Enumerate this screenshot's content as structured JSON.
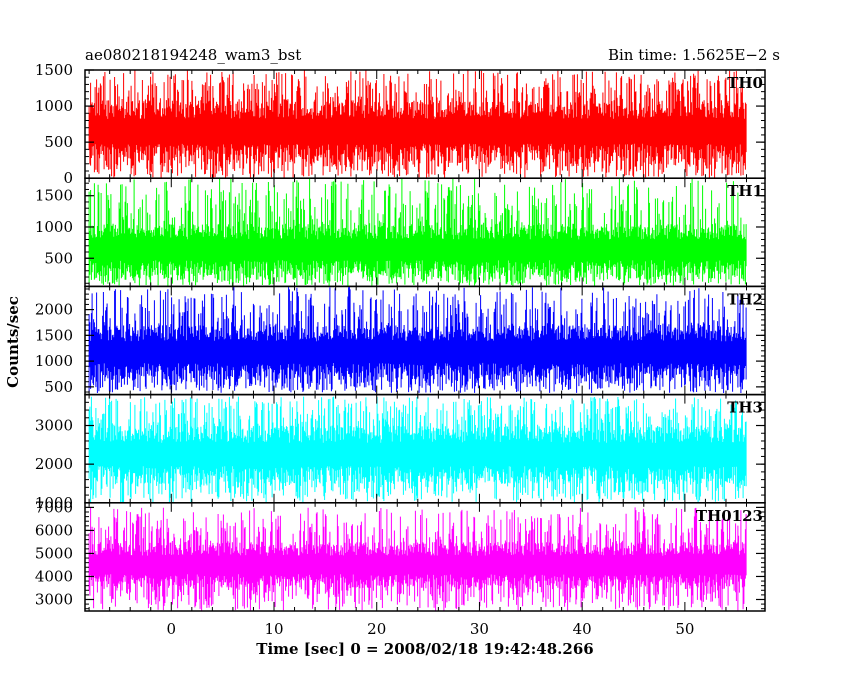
{
  "chart_data": {
    "type": "line",
    "title": "ae080218194248_wam3_bst",
    "bin_time_label": "Bin time: 1.5625E−2 s",
    "xlabel": "Time [sec] 0 = 2008/02/18 19:42:48.266",
    "ylabel": "Counts/sec",
    "xlim": [
      -8.4,
      57.8
    ],
    "x_ticks": [
      0,
      10,
      20,
      30,
      40,
      50
    ],
    "x_ticks_minor_step": 2,
    "x_data_range": [
      -8,
      56
    ],
    "grid": false,
    "panels": [
      {
        "name": "TH0",
        "color": "#ff0000",
        "ylim": [
          0,
          1500
        ],
        "y_ticks": [
          0,
          500,
          1000,
          1500
        ],
        "minor_step": 100,
        "band": [
          220,
          1080
        ],
        "spike_range": [
          0,
          1500
        ]
      },
      {
        "name": "TH1",
        "color": "#00ff00",
        "ylim": [
          50,
          1780
        ],
        "y_ticks": [
          500,
          1000,
          1500
        ],
        "minor_step": 100,
        "band": [
          220,
          1050
        ],
        "spike_range": [
          60,
          1780
        ]
      },
      {
        "name": "TH2",
        "color": "#0000ff",
        "ylim": [
          350,
          2450
        ],
        "y_ticks": [
          500,
          1000,
          1500,
          2000
        ],
        "minor_step": 100,
        "band": [
          650,
          1700
        ],
        "spike_range": [
          380,
          2450
        ]
      },
      {
        "name": "TH3",
        "color": "#00ffff",
        "ylim": [
          1000,
          3800
        ],
        "y_ticks": [
          1000,
          2000,
          3000
        ],
        "minor_step": 200,
        "band": [
          1500,
          3000
        ],
        "spike_range": [
          1000,
          3750
        ]
      },
      {
        "name": "TH0123",
        "color": "#ff00ff",
        "ylim": [
          2500,
          7200
        ],
        "y_ticks": [
          3000,
          4000,
          5000,
          6000,
          7000
        ],
        "minor_step": 200,
        "band": [
          3500,
          5500
        ],
        "spike_range": [
          2500,
          7000
        ]
      }
    ]
  }
}
